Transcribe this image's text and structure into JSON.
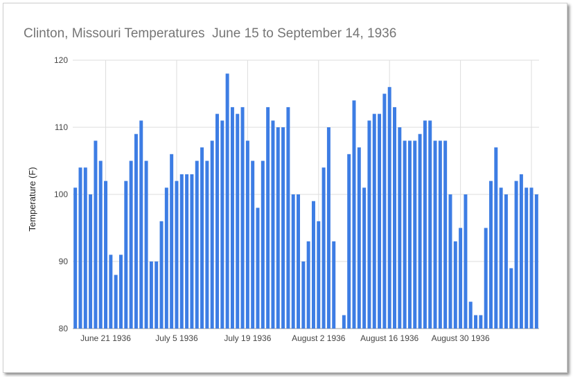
{
  "chart_data": {
    "type": "bar",
    "title": "Clinton, Missouri Temperatures  June 15 to September 14, 1936",
    "xlabel": "",
    "ylabel": "Temperature (F)",
    "ylim": [
      80,
      120
    ],
    "yticks": [
      80,
      90,
      100,
      110,
      120
    ],
    "grid": true,
    "legend": "none",
    "color": "#3d7de4",
    "start_date": "1936-06-15",
    "x_tick_labels": [
      {
        "label": "June 21 1936",
        "index": 6
      },
      {
        "label": "July 5 1936",
        "index": 20
      },
      {
        "label": "July 19 1936",
        "index": 34
      },
      {
        "label": "August 2 1936",
        "index": 48
      },
      {
        "label": "August 16 1936",
        "index": 62
      },
      {
        "label": "August 30 1936",
        "index": 76
      }
    ],
    "values": [
      101,
      104,
      104,
      100,
      108,
      105,
      102,
      91,
      88,
      91,
      102,
      105,
      109,
      111,
      105,
      90,
      90,
      96,
      101,
      106,
      102,
      103,
      103,
      103,
      105,
      107,
      105,
      108,
      112,
      111,
      118,
      113,
      112,
      113,
      108,
      105,
      98,
      105,
      113,
      111,
      110,
      110,
      113,
      100,
      100,
      90,
      93,
      99,
      96,
      104,
      110,
      93,
      null,
      82,
      106,
      114,
      107,
      101,
      111,
      112,
      112,
      115,
      116,
      113,
      110,
      108,
      108,
      108,
      109,
      111,
      111,
      108,
      108,
      108,
      100,
      93,
      95,
      100,
      84,
      82,
      82,
      95,
      102,
      107,
      101,
      100,
      89,
      102,
      103,
      101,
      101,
      100
    ]
  }
}
